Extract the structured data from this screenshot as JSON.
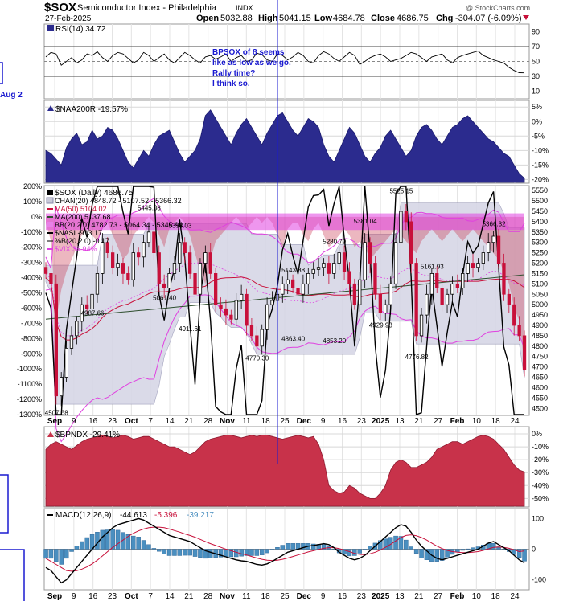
{
  "header": {
    "symbol": "$SOX",
    "name": "Semiconductor Index - Philadelphia",
    "exchange": "INDX",
    "date": "27-Feb-2025",
    "watermark": "@ StockCharts.com",
    "open_label": "Open",
    "open": "5032.88",
    "high_label": "High",
    "high": "5041.15",
    "low_label": "Low",
    "low": "4684.78",
    "close_label": "Close",
    "close": "4686.75",
    "chg_label": "Chg",
    "chg": "-304.07 (-6.09%)"
  },
  "colors": {
    "navy": "#2b2b8e",
    "crimson": "#c8324a",
    "magenta": "#e040e0",
    "annotation": "#1a1ad0",
    "up_candle": "#000000",
    "down_candle": "#c8103a"
  },
  "annotations": {
    "left_label": "Aug 2",
    "note_lines": [
      "BPSOX of 8 seems",
      "like as low as we go.",
      "Rally time?",
      "I think so."
    ]
  },
  "x_axis": {
    "labels": [
      "Sep",
      "9",
      "16",
      "23",
      "Oct",
      "7",
      "14",
      "21",
      "28",
      "Nov",
      "11",
      "18",
      "25",
      "Dec",
      "9",
      "16",
      "23",
      "2025",
      "13",
      "21",
      "27",
      "Feb",
      "10",
      "18",
      "24"
    ]
  },
  "chart_data": [
    {
      "panel": "rsi",
      "type": "line",
      "legend": "RSI(14) 34.72",
      "ticks": [
        "70",
        "50",
        "30",
        "10"
      ],
      "top_tick": "90",
      "ylim": [
        0,
        100
      ],
      "values": [
        56,
        62,
        60,
        45,
        50,
        55,
        48,
        52,
        60,
        58,
        63,
        55,
        50,
        58,
        62,
        60,
        54,
        48,
        52,
        62,
        58,
        50,
        55,
        60,
        52,
        48,
        55,
        62,
        58,
        52,
        48,
        56,
        58,
        53,
        56,
        60,
        50,
        55,
        58,
        50,
        52,
        61,
        59,
        52,
        50,
        60,
        58,
        52,
        56,
        62,
        58,
        50,
        48,
        58,
        63,
        60,
        54,
        50,
        56,
        62,
        58,
        46,
        50,
        55,
        58,
        60,
        56,
        50,
        52,
        54,
        58,
        62,
        60,
        55,
        50,
        56,
        58,
        60,
        52,
        48,
        55,
        58,
        60,
        62,
        64,
        58,
        55,
        52,
        50,
        48,
        42,
        38,
        35,
        34.72
      ]
    },
    {
      "panel": "naa200r",
      "type": "area",
      "legend": "$NAA200R -19.57%",
      "ticks": [
        "5%",
        "0%",
        "-5%",
        "-10%",
        "-15%",
        "-20%"
      ],
      "ylim": [
        -21,
        7
      ],
      "values": [
        -10,
        -11,
        -13,
        -15,
        -9,
        -6,
        -4,
        -8,
        -7,
        -3,
        -6,
        -5,
        -2,
        -3,
        -6,
        -10,
        -14,
        -16,
        -13,
        -10,
        -12,
        -8,
        -5,
        -4,
        -3,
        -7,
        -11,
        -14,
        -12,
        -10,
        -6,
        2,
        4,
        1,
        -2,
        -5,
        -8,
        -4,
        -1,
        1,
        -2,
        -5,
        -8,
        -4,
        -1,
        2,
        3,
        0,
        -3,
        -5,
        -2,
        1,
        0,
        -2,
        -8,
        -12,
        -14,
        -10,
        -6,
        -2,
        -4,
        -8,
        -12,
        -14,
        -11,
        -9,
        -5,
        -3,
        -6,
        -9,
        -12,
        -10,
        -5,
        -2,
        -1,
        -3,
        -6,
        -8,
        -5,
        -2,
        -1,
        1,
        2,
        0,
        -2,
        -4,
        -6,
        -7,
        -9,
        -11,
        -12,
        -15,
        -18,
        -19.57
      ]
    },
    {
      "panel": "price",
      "type": "candlestick",
      "legend": [
        "$SOX (Daily) 4686.75",
        "CHAN(20) 4848.72 - 5107.52 - 5366.32",
        "MA(50) 5104.02",
        "MA(200) 5137.68",
        "BB(20,2.0) 4782.73 - 5064.34 - 5345.94",
        "$NASI -913.17",
        "%B(20,2.0) -0.17",
        "$VIX 36.94%"
      ],
      "right_ticks": [
        "5550",
        "5500",
        "5450",
        "5400",
        "5350",
        "5300",
        "5250",
        "5200",
        "5150",
        "5100",
        "5050",
        "5000",
        "4950",
        "4900",
        "4850",
        "4800",
        "4750",
        "4700",
        "4650",
        "4600",
        "4550",
        "4500"
      ],
      "left_ticks": [
        "200%",
        "100%",
        "0%",
        "-100%",
        "-200%",
        "-300%",
        "-400%",
        "-500%",
        "-600%",
        "-700%",
        "-800%",
        "-900%",
        "-1000%",
        "-1100%",
        "-1200%",
        "-1300%"
      ],
      "ylim": [
        4470,
        5570
      ],
      "price_labels": [
        {
          "text": "4507.68",
          "index": 2
        },
        {
          "text": "4987.66",
          "index": 9
        },
        {
          "text": "5445.08",
          "index": 20
        },
        {
          "text": "5358.03",
          "index": 26
        },
        {
          "text": "5061.40",
          "index": 23
        },
        {
          "text": "4911.61",
          "index": 28
        },
        {
          "text": "4770.30",
          "index": 41
        },
        {
          "text": "5143.88",
          "index": 48
        },
        {
          "text": "4863.40",
          "index": 48
        },
        {
          "text": "5280.79",
          "index": 56
        },
        {
          "text": "4853.20",
          "index": 56
        },
        {
          "text": "5381.04",
          "index": 62
        },
        {
          "text": "4929.93",
          "index": 65
        },
        {
          "text": "5525.15",
          "index": 69
        },
        {
          "text": "4776.82",
          "index": 72
        },
        {
          "text": "5161.93",
          "index": 75
        },
        {
          "text": "5366.32",
          "index": 87
        }
      ],
      "closes": [
        5150,
        5100,
        4560,
        4650,
        4790,
        4850,
        4920,
        5000,
        4980,
        5050,
        5150,
        5300,
        5250,
        5180,
        5200,
        5150,
        5120,
        5250,
        5230,
        5300,
        5350,
        5250,
        5100,
        5080,
        5150,
        5200,
        5300,
        5250,
        5150,
        5050,
        5200,
        5250,
        5150,
        5000,
        4980,
        4950,
        4930,
        5020,
        5050,
        4900,
        4850,
        4800,
        4880,
        5000,
        5020,
        5050,
        5100,
        5120,
        5080,
        5050,
        5100,
        5150,
        5170,
        5180,
        5200,
        5150,
        5200,
        5250,
        5160,
        5100,
        5000,
        5120,
        5300,
        5200,
        5050,
        4960,
        5000,
        5100,
        5300,
        5450,
        5400,
        5200,
        4850,
        4950,
        5050,
        5150,
        5080,
        5000,
        5050,
        5100,
        5080,
        5150,
        5200,
        5180,
        5200,
        5250,
        5300,
        5330,
        5200,
        5050,
        5000,
        4900,
        4850,
        4686.75
      ],
      "highs_lows": "derived",
      "vix_pct_axis": [
        14,
        17,
        30,
        25,
        22,
        20,
        18,
        16,
        15,
        16,
        17,
        15,
        14,
        16,
        18,
        20,
        19,
        16,
        15,
        14,
        13,
        14,
        16,
        18,
        15,
        14,
        13,
        14,
        16,
        19,
        22,
        24,
        20,
        17,
        16,
        15,
        14,
        13,
        14,
        15,
        14,
        13,
        14,
        13,
        14,
        16,
        18,
        15,
        14,
        14,
        16,
        17,
        15,
        14,
        16,
        18,
        17,
        16,
        15,
        16,
        18,
        17,
        18,
        20,
        19,
        18,
        17,
        16,
        15,
        16,
        17,
        18,
        19,
        17,
        16,
        15,
        16,
        17,
        16,
        15,
        16,
        17,
        16,
        15,
        16,
        17,
        18,
        19,
        20,
        22,
        24,
        28,
        30,
        36.94
      ]
    },
    {
      "panel": "bpndx",
      "type": "area",
      "legend": "$BPNDX -29.41%",
      "ticks": [
        "0%",
        "-10%",
        "-20%",
        "-30%",
        "-40%",
        "-50%"
      ],
      "ylim": [
        -56,
        5
      ],
      "values": [
        -12,
        -8,
        -6,
        -8,
        -10,
        -12,
        -9,
        -6,
        -4,
        -3,
        -2,
        -1,
        -2,
        -3,
        -2,
        -1,
        -2,
        -4,
        -3,
        -2,
        -2,
        -4,
        -6,
        -8,
        -10,
        -10,
        -12,
        -14,
        -16,
        -14,
        -10,
        -6,
        -4,
        -3,
        -2,
        -1,
        -1,
        -2,
        -3,
        -2,
        -1,
        -2,
        -1,
        -1,
        -2,
        -3,
        -4,
        -3,
        -2,
        -1,
        -2,
        -3,
        -2,
        -8,
        -20,
        -40,
        -44,
        -46,
        -45,
        -40,
        -42,
        -46,
        -48,
        -50,
        -50,
        -46,
        -40,
        -28,
        -22,
        -20,
        -22,
        -26,
        -26,
        -24,
        -22,
        -18,
        -12,
        -10,
        -8,
        -6,
        -6,
        -8,
        -6,
        -4,
        -2,
        -1,
        -2,
        -4,
        -8,
        -12,
        -18,
        -24,
        -28,
        -29.41
      ]
    },
    {
      "panel": "macd",
      "type": "macd",
      "legend_name": "MACD(12,26,9)",
      "legend_macd": "-44.613",
      "legend_signal": "-5.396",
      "legend_hist": "-39.217",
      "ticks": [
        "100",
        "0",
        "-100"
      ],
      "ylim": [
        -130,
        130
      ],
      "macd": [
        -60,
        -70,
        -90,
        -110,
        -100,
        -80,
        -60,
        -40,
        -20,
        0,
        20,
        40,
        55,
        70,
        80,
        85,
        90,
        95,
        100,
        95,
        85,
        75,
        65,
        55,
        45,
        40,
        35,
        30,
        25,
        15,
        5,
        -5,
        -10,
        -15,
        -20,
        -25,
        -30,
        -35,
        -38,
        -40,
        -45,
        -50,
        -52,
        -48,
        -40,
        -30,
        -20,
        -10,
        -5,
        0,
        5,
        10,
        12,
        15,
        18,
        15,
        5,
        -10,
        -20,
        -30,
        -35,
        -30,
        -20,
        -5,
        10,
        25,
        40,
        55,
        70,
        80,
        75,
        55,
        30,
        10,
        -5,
        -20,
        -30,
        -35,
        -30,
        -25,
        -20,
        -15,
        -10,
        -5,
        0,
        10,
        20,
        25,
        15,
        5,
        -5,
        -20,
        -35,
        -44.613
      ],
      "signal": [
        -30,
        -40,
        -50,
        -60,
        -70,
        -72,
        -70,
        -65,
        -58,
        -48,
        -36,
        -22,
        -8,
        6,
        18,
        30,
        42,
        52,
        60,
        66,
        70,
        72,
        72,
        70,
        66,
        61,
        56,
        50,
        45,
        39,
        32,
        25,
        18,
        12,
        6,
        0,
        -5,
        -10,
        -15,
        -19,
        -24,
        -29,
        -33,
        -36,
        -37,
        -36,
        -33,
        -29,
        -24,
        -19,
        -14,
        -9,
        -5,
        -1,
        3,
        5,
        5,
        2,
        -3,
        -8,
        -14,
        -17,
        -18,
        -15,
        -10,
        -3,
        6,
        16,
        27,
        38,
        45,
        47,
        44,
        38,
        30,
        20,
        10,
        2,
        -4,
        -8,
        -10,
        -11,
        -11,
        -10,
        -8,
        -4,
        1,
        6,
        7,
        6,
        3,
        -2,
        -8,
        -5.396
      ]
    }
  ]
}
